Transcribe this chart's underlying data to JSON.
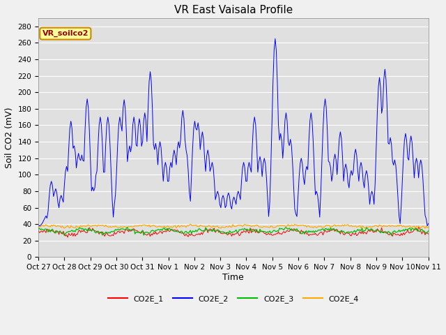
{
  "title": "VR East Vaisala Profile",
  "ylabel": "Soil CO2 (mV)",
  "xlabel": "Time",
  "annotation": "VR_soilco2",
  "ylim": [
    0,
    290
  ],
  "yticks": [
    0,
    20,
    40,
    60,
    80,
    100,
    120,
    140,
    160,
    180,
    200,
    220,
    240,
    260,
    280
  ],
  "x_labels": [
    "Oct 27",
    "Oct 28",
    "Oct 29",
    "Oct 30",
    "Oct 31",
    "Nov 1",
    "Nov 2",
    "Nov 3",
    "Nov 4",
    "Nov 5",
    "Nov 6",
    "Nov 7",
    "Nov 8",
    "Nov 9",
    "Nov 10",
    "Nov 11"
  ],
  "colors": {
    "CO2E_1": "#ff0000",
    "CO2E_2": "#0000ff",
    "CO2E_3": "#00bb00",
    "CO2E_4": "#ffaa00"
  },
  "bg_color": "#e0e0e0",
  "fig_bg": "#f0f0f0",
  "title_fontsize": 11,
  "label_fontsize": 9,
  "tick_fontsize": 7.5,
  "annot_fontsize": 8,
  "legend_fontsize": 8
}
